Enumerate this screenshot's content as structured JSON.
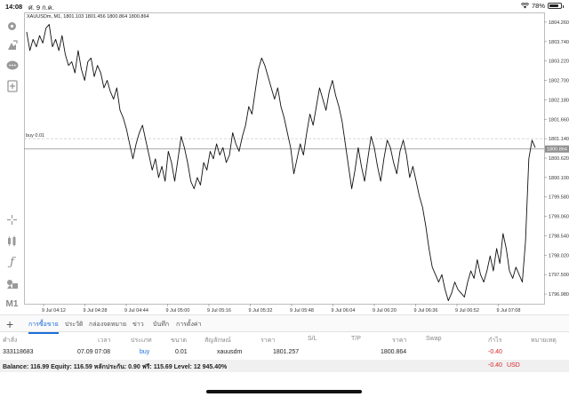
{
  "status_bar": {
    "time": "14:08",
    "date": "ศ. 9 ก.ค.",
    "battery": "78%",
    "battery_level": 0.78
  },
  "chart": {
    "title": "XAUUSDm, M1, 1801.103 1801.456 1800.864 1800.864",
    "order_label": "buy 0.01",
    "current_price_label": "1800.864",
    "order_price_label": "1801.140",
    "y_ticks": [
      "1804.260",
      "1803.740",
      "1803.220",
      "1802.700",
      "1802.180",
      "1801.660",
      "1801.140",
      "1800.620",
      "1800.100",
      "1799.580",
      "1799.060",
      "1798.540",
      "1798.020",
      "1797.500",
      "1796.980"
    ],
    "x_ticks": [
      "9 Jul 04:12",
      "9 Jul 04:28",
      "9 Jul 04:44",
      "9 Jul 05:00",
      "9 Jul 05:16",
      "9 Jul 05:32",
      "9 Jul 05:48",
      "9 Jul 06:04",
      "9 Jul 06:20",
      "9 Jul 06:36",
      "9 Jul 06:52",
      "9 Jul 07:08"
    ]
  },
  "chart_data": {
    "type": "line",
    "title": "XAUUSDm, M1, 1801.103 1801.456 1800.864 1800.864",
    "symbol": "XAUUSDm",
    "timeframe": "M1",
    "ylim": [
      1796.72,
      1804.52
    ],
    "x_tick_labels": [
      "9 Jul 04:12",
      "9 Jul 04:28",
      "9 Jul 04:44",
      "9 Jul 05:00",
      "9 Jul 05:16",
      "9 Jul 05:32",
      "9 Jul 05:48",
      "9 Jul 06:04",
      "9 Jul 06:20",
      "9 Jul 06:36",
      "9 Jul 06:52",
      "9 Jul 07:08"
    ],
    "order_line": {
      "label": "buy 0.01",
      "price": 1801.14
    },
    "current_price": 1800.864,
    "series": [
      {
        "values": [
          1804.0,
          1803.5,
          1803.8,
          1803.6,
          1803.9,
          1803.7,
          1804.1,
          1804.2,
          1803.6,
          1803.8,
          1803.5,
          1803.9,
          1803.4,
          1803.1,
          1803.2,
          1802.9,
          1803.5,
          1803.0,
          1802.7,
          1803.2,
          1803.3,
          1802.8,
          1803.1,
          1802.9,
          1802.5,
          1802.7,
          1802.4,
          1802.2,
          1802.5,
          1801.9,
          1801.7,
          1801.4,
          1801.0,
          1800.6,
          1801.0,
          1801.3,
          1801.5,
          1801.1,
          1800.7,
          1800.3,
          1800.6,
          1800.1,
          1800.4,
          1800.0,
          1800.8,
          1800.5,
          1800.0,
          1800.6,
          1801.2,
          1800.9,
          1800.5,
          1800.0,
          1799.8,
          1800.1,
          1799.9,
          1800.5,
          1800.3,
          1800.8,
          1800.6,
          1801.0,
          1800.7,
          1800.9,
          1800.5,
          1800.7,
          1801.3,
          1801.0,
          1800.8,
          1801.2,
          1801.5,
          1802.0,
          1801.8,
          1802.4,
          1803.0,
          1803.3,
          1803.1,
          1802.8,
          1802.5,
          1802.2,
          1802.5,
          1802.0,
          1801.7,
          1801.3,
          1800.9,
          1800.2,
          1800.6,
          1801.0,
          1800.7,
          1801.3,
          1801.8,
          1801.5,
          1802.0,
          1802.5,
          1802.2,
          1801.9,
          1802.4,
          1802.7,
          1802.3,
          1802.0,
          1801.6,
          1801.0,
          1800.4,
          1799.8,
          1800.3,
          1800.9,
          1800.4,
          1800.0,
          1800.6,
          1801.2,
          1800.9,
          1800.4,
          1800.0,
          1800.6,
          1801.1,
          1800.9,
          1800.5,
          1800.2,
          1800.8,
          1801.1,
          1800.7,
          1800.1,
          1800.4,
          1800.0,
          1799.6,
          1799.3,
          1798.8,
          1798.2,
          1797.7,
          1797.5,
          1797.3,
          1797.5,
          1797.1,
          1796.8,
          1797.0,
          1797.3,
          1797.1,
          1797.0,
          1796.9,
          1797.3,
          1797.6,
          1797.4,
          1797.9,
          1797.5,
          1797.3,
          1797.6,
          1798.0,
          1797.6,
          1798.2,
          1797.8,
          1798.6,
          1798.2,
          1797.6,
          1797.4,
          1797.7,
          1797.5,
          1797.3,
          1798.4,
          1800.6,
          1801.1,
          1800.9
        ]
      }
    ]
  },
  "tabs": [
    {
      "label": "การซื้อขาย",
      "active": true
    },
    {
      "label": "ประวัติ",
      "active": false
    },
    {
      "label": "กล่องจดหมาย",
      "active": false
    },
    {
      "label": "ข่าว",
      "active": false
    },
    {
      "label": "บันทึก",
      "active": false
    },
    {
      "label": "การตั้งค่า",
      "active": false
    }
  ],
  "table": {
    "headers": [
      "คำสั่ง",
      "เวลา",
      "ประเภท",
      "ขนาด",
      "สัญลักษณ์",
      "ราคา",
      "S/L",
      "T/P",
      "ราคา",
      "Swap",
      "กำไร",
      "หมายเหตุ"
    ],
    "row": {
      "order": "333118683",
      "time": "07.09 07:08",
      "type": "buy",
      "size": "0.01",
      "symbol": "xauusdm",
      "open_price": "1801.257",
      "current_price": "1800.864",
      "profit": "-0.40"
    }
  },
  "summary": {
    "text": "Balance: 116.99 Equity: 116.59 หลักประกัน: 0.90 ฟรี: 115.69 Level: 12 945.40%",
    "profit": "-0.40",
    "currency": "USD"
  },
  "colors": {
    "accent": "#1a6fd8",
    "loss": "#d9262c",
    "line": "#111111",
    "grid": "#e6e6e6"
  }
}
